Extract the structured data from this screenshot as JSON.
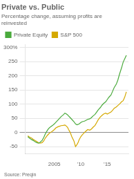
{
  "chart_data": {
    "type": "line",
    "title": "Private vs. Public",
    "subtitle": "Percentage change, assuming profits are\nreinvested",
    "annotations": [
      "Source: Preqin"
    ],
    "legend": "top",
    "grid": "y",
    "xlim": [
      1999.5,
      2019.0
    ],
    "xticks": [
      2005,
      {
        "value": 2010,
        "label": "'10"
      },
      {
        "value": 2015,
        "label": "'15"
      }
    ],
    "ylim": [
      -75,
      310
    ],
    "yticks": [
      -50,
      0,
      50,
      100,
      150,
      200,
      250,
      {
        "value": 300,
        "label": "300%"
      }
    ],
    "series": [
      {
        "name": "Private Equity",
        "color": "#4aaa3c",
        "x": [
          2000,
          2000.3,
          2000.7,
          2001,
          2001.3,
          2001.7,
          2002,
          2002.3,
          2002.7,
          2003,
          2003.3,
          2003.7,
          2004,
          2004.3,
          2004.7,
          2005,
          2005.3,
          2005.7,
          2006,
          2006.3,
          2006.7,
          2007,
          2007.3,
          2007.5,
          2007.7,
          2008,
          2008.3,
          2008.7,
          2009,
          2009.3,
          2009.7,
          2010,
          2010.3,
          2010.7,
          2011,
          2011.3,
          2011.7,
          2012,
          2012.3,
          2012.7,
          2013,
          2013.3,
          2013.7,
          2014,
          2014.3,
          2014.7,
          2015,
          2015.3,
          2015.7,
          2016,
          2016.3,
          2016.7,
          2017,
          2017.3,
          2017.7,
          2018,
          2018.3,
          2018.6
        ],
        "values": [
          -15,
          -20,
          -25,
          -28,
          -32,
          -36,
          -38,
          -35,
          -28,
          -18,
          -5,
          8,
          15,
          20,
          25,
          30,
          36,
          44,
          50,
          56,
          62,
          68,
          65,
          62,
          58,
          52,
          46,
          38,
          30,
          27,
          30,
          35,
          38,
          40,
          43,
          46,
          48,
          52,
          58,
          64,
          72,
          80,
          88,
          96,
          102,
          108,
          116,
          124,
          132,
          145,
          158,
          170,
          185,
          205,
          228,
          248,
          260,
          272
        ]
      },
      {
        "name": "S&P 500",
        "color": "#d4a800",
        "x": [
          2000,
          2000.3,
          2000.7,
          2001,
          2001.3,
          2001.7,
          2002,
          2002.3,
          2002.7,
          2003,
          2003.3,
          2003.7,
          2004,
          2004.3,
          2004.7,
          2005,
          2005.3,
          2005.7,
          2006,
          2006.3,
          2006.7,
          2007,
          2007.3,
          2007.5,
          2007.7,
          2008,
          2008.3,
          2008.7,
          2009,
          2009.3,
          2009.5,
          2009.7,
          2010,
          2010.3,
          2010.7,
          2011,
          2011.3,
          2011.7,
          2012,
          2012.3,
          2012.7,
          2013,
          2013.3,
          2013.7,
          2014,
          2014.3,
          2014.7,
          2015,
          2015.3,
          2015.7,
          2016,
          2016.3,
          2016.7,
          2017,
          2017.3,
          2017.7,
          2018,
          2018.3,
          2018.6
        ],
        "values": [
          -12,
          -16,
          -20,
          -24,
          -28,
          -32,
          -36,
          -38,
          -36,
          -30,
          -20,
          -10,
          -4,
          0,
          5,
          10,
          16,
          20,
          22,
          24,
          25,
          26,
          22,
          18,
          10,
          0,
          -15,
          -30,
          -50,
          -42,
          -35,
          -25,
          -15,
          -8,
          0,
          5,
          10,
          8,
          12,
          18,
          25,
          35,
          45,
          55,
          60,
          65,
          68,
          65,
          68,
          72,
          78,
          85,
          90,
          95,
          100,
          108,
          112,
          125,
          143
        ]
      }
    ]
  }
}
